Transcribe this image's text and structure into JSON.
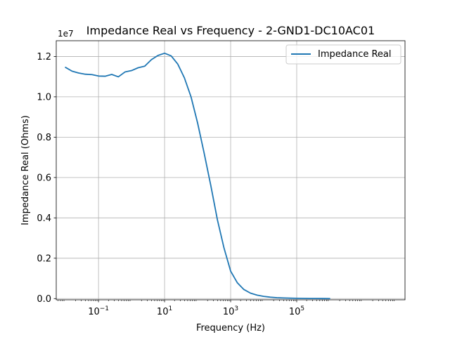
{
  "chart_data": {
    "type": "line",
    "title": "Impedance Real vs Frequency - 2-GND1-DC10AC01",
    "xlabel": "Frequency (Hz)",
    "ylabel": "Impedance Real (Ohms)",
    "xscale": "log",
    "xlim": [
      0.00525,
      190000000
    ],
    "ylim": [
      -60000,
      12780000
    ],
    "y_offset_label": "1e7",
    "x_ticks": [
      {
        "value": 0.1,
        "base": "10",
        "exp": "−1"
      },
      {
        "value": 10,
        "base": "10",
        "exp": "1"
      },
      {
        "value": 1000,
        "base": "10",
        "exp": "3"
      },
      {
        "value": 100000,
        "base": "10",
        "exp": "5"
      }
    ],
    "y_ticks": [
      {
        "value": 0,
        "label": "0.0"
      },
      {
        "value": 2000000,
        "label": "0.2"
      },
      {
        "value": 4000000,
        "label": "0.4"
      },
      {
        "value": 6000000,
        "label": "0.6"
      },
      {
        "value": 8000000,
        "label": "0.8"
      },
      {
        "value": 10000000,
        "label": "1.0"
      },
      {
        "value": 12000000,
        "label": "1.2"
      }
    ],
    "grid": true,
    "legend_position": "top-right",
    "series": [
      {
        "name": "Impedance Real",
        "color": "#1f77b4",
        "x": [
          0.01,
          0.0158,
          0.0251,
          0.0398,
          0.0631,
          0.1,
          0.158,
          0.251,
          0.398,
          0.631,
          1,
          1.58,
          2.51,
          3.98,
          6.31,
          10,
          15.8,
          25.1,
          39.8,
          63.1,
          100,
          158,
          251,
          398,
          631,
          1000,
          1585,
          2512,
          3981,
          6310,
          10000,
          15850,
          25120,
          39810,
          63100,
          100000,
          158500,
          251200,
          398100,
          631000,
          1000000
        ],
        "y": [
          11460000,
          11270000,
          11180000,
          11120000,
          11100000,
          11030000,
          11020000,
          11110000,
          10990000,
          11230000,
          11300000,
          11440000,
          11520000,
          11840000,
          12050000,
          12160000,
          12030000,
          11620000,
          10940000,
          10000000,
          8700000,
          7200000,
          5600000,
          3900000,
          2500000,
          1360000,
          790000,
          450000,
          270000,
          170000,
          110000,
          70000,
          45000,
          30000,
          20000,
          13000,
          9000,
          6000,
          4000,
          2500,
          1500
        ]
      }
    ]
  }
}
